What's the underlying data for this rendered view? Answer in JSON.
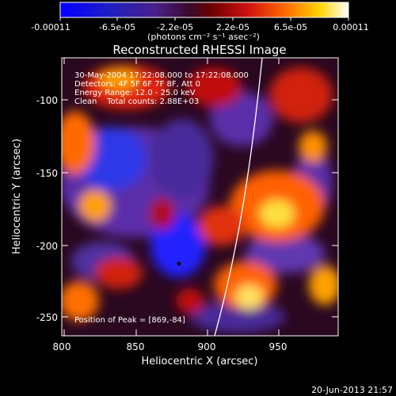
{
  "colorbar": {
    "ticks": [
      "-0.00011",
      "-6.5e-05",
      "-2.2e-05",
      "2.2e-05",
      "6.5e-05",
      "0.00011"
    ],
    "units": "(photons cm⁻² s⁻¹ asec⁻²)"
  },
  "plot": {
    "title": "Reconstructed RHESSI Image",
    "xlabel": "Heliocentric X (arcsec)",
    "ylabel": "Heliocentric Y (arcsec)",
    "xticks": [
      "800",
      "850",
      "900",
      "950"
    ],
    "yticks": [
      "-100",
      "-150",
      "-200",
      "-250"
    ]
  },
  "annotations": {
    "time": "30-May-2004 17:22:08.000 to 17:22:08.000",
    "detectors": "Detectors: 4F 5F 6F 7F 8F, Att 0",
    "energy": "Energy Range: 12.0 - 25.0 keV",
    "clean": "Clean    Total counts: 2.88E+03",
    "peak": "Position of Peak = [869,-84]"
  },
  "footer": {
    "timestamp": "20-Jun-2013 21:57"
  }
}
